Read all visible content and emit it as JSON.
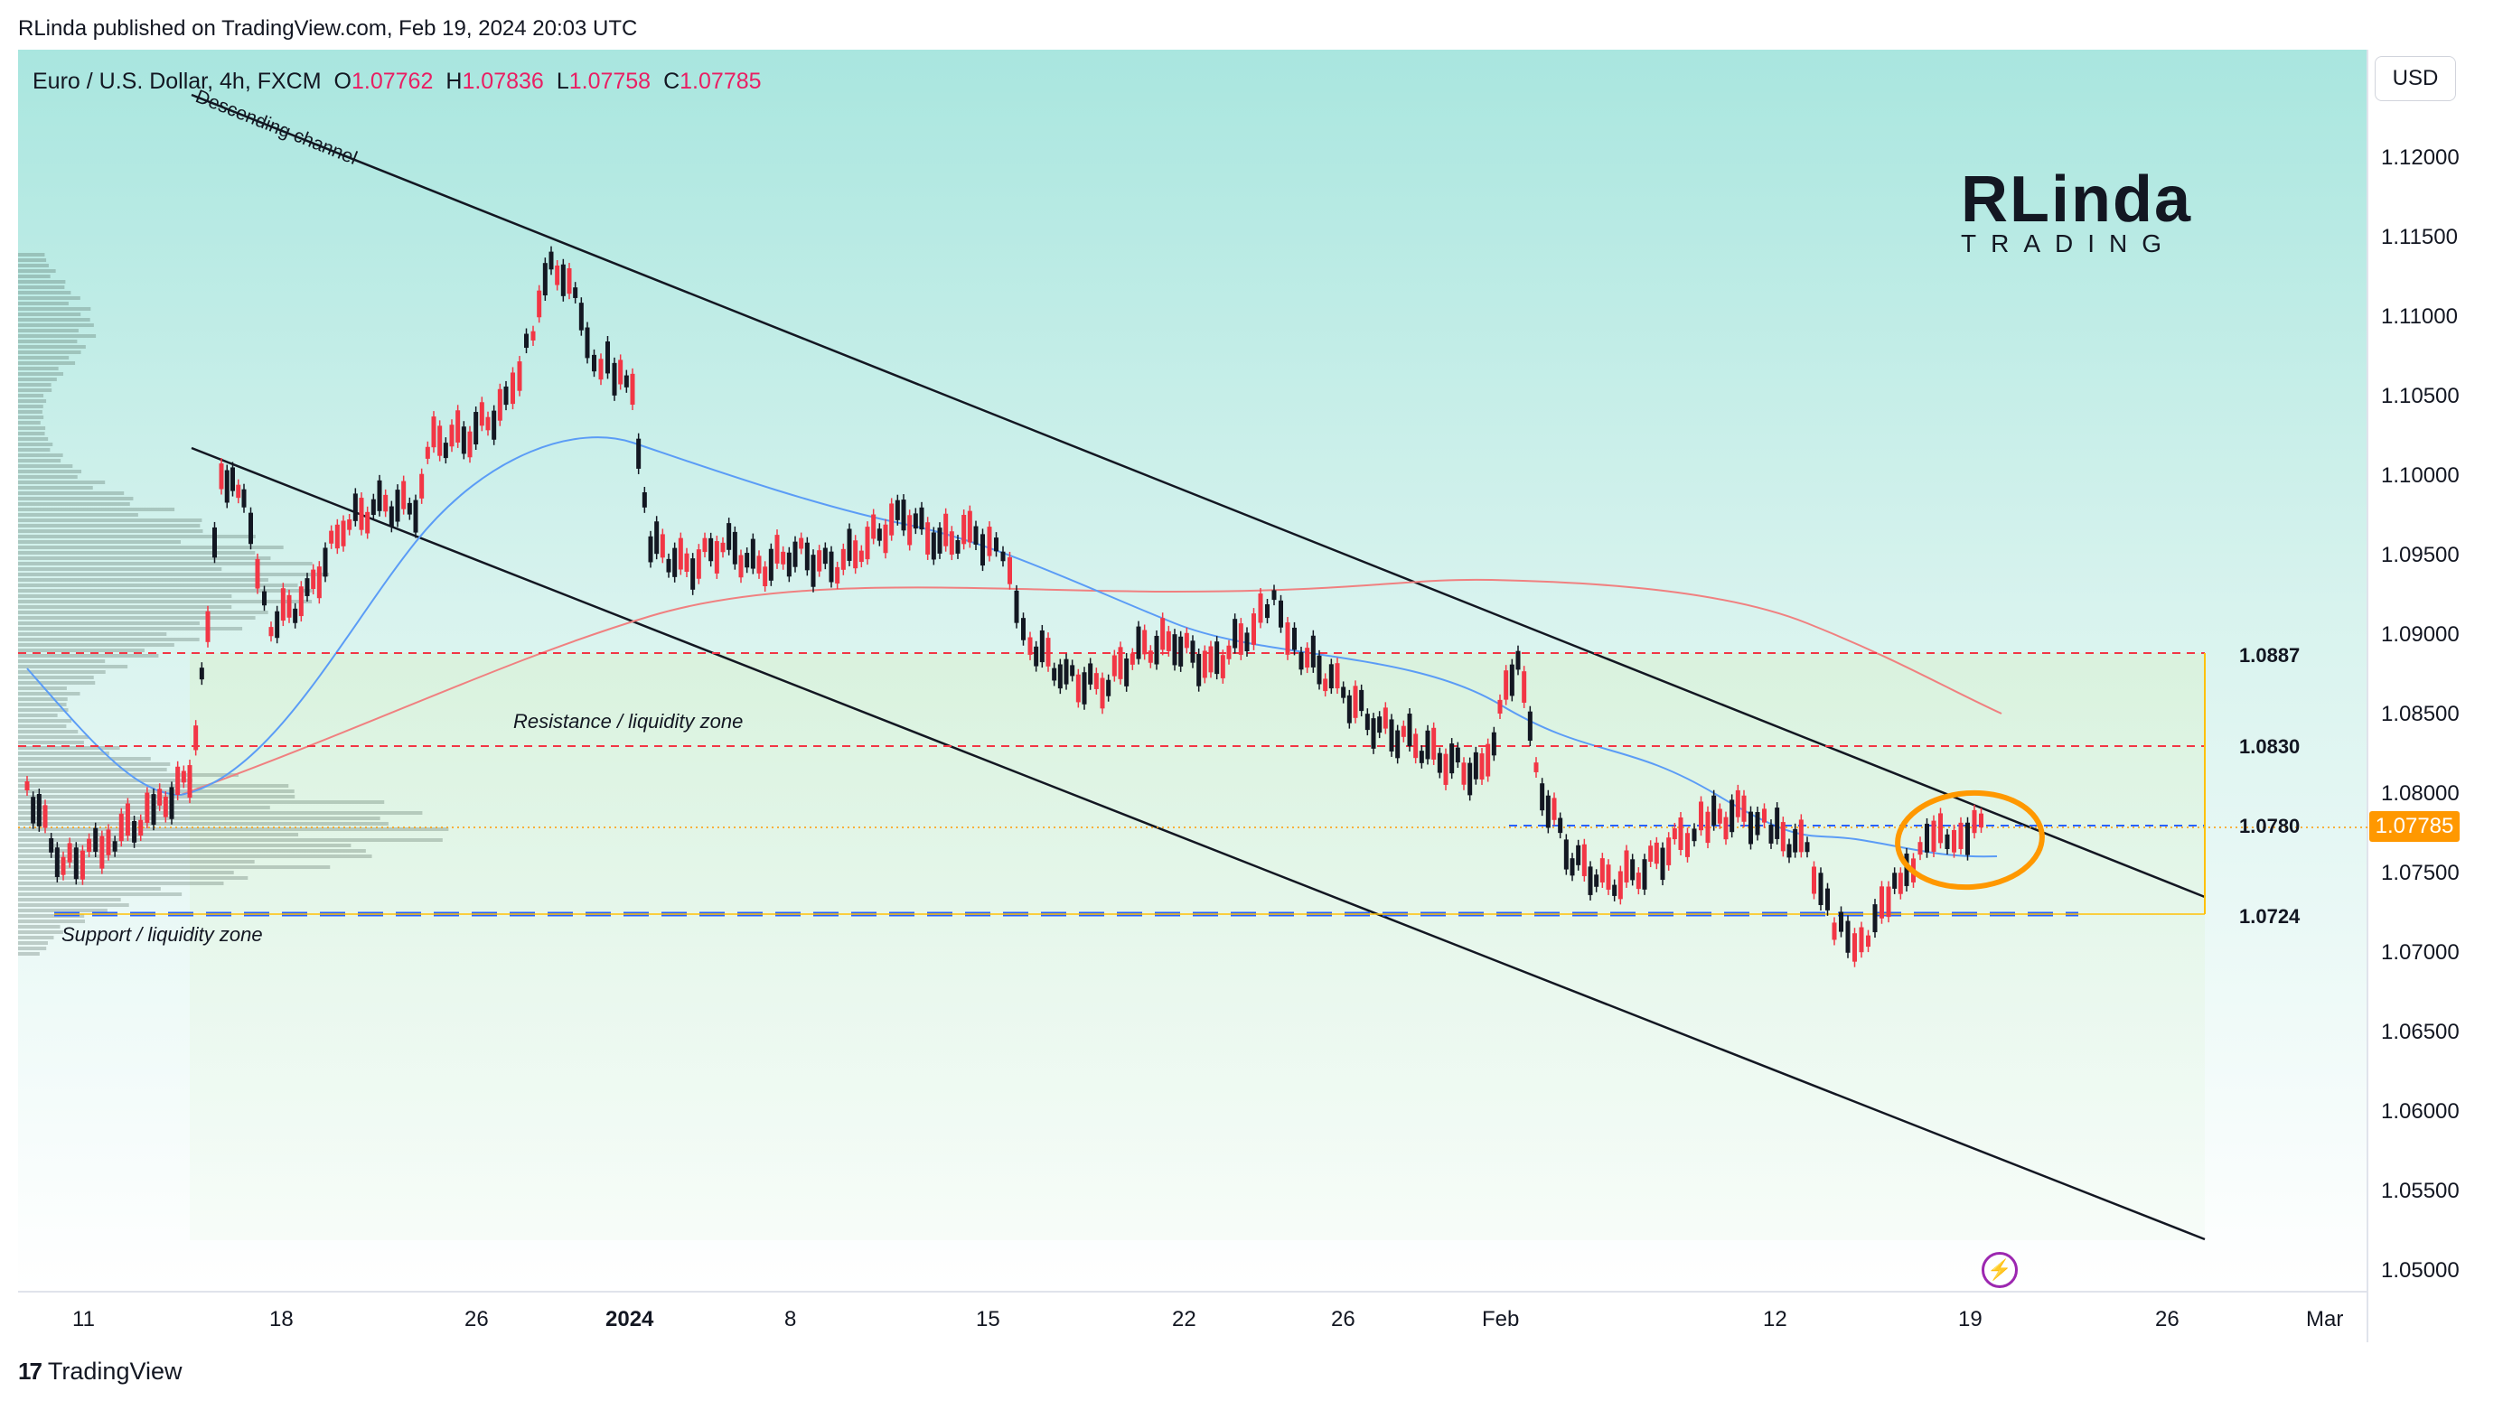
{
  "header": {
    "text": "RLinda published on TradingView.com, Feb 19, 2024 20:03 UTC"
  },
  "symbol": {
    "name": "Euro / U.S. Dollar, 4h, FXCM",
    "open_label": "O",
    "open": "1.07762",
    "high_label": "H",
    "high": "1.07836",
    "low_label": "L",
    "low": "1.07758",
    "close_label": "C",
    "close": "1.07785"
  },
  "currency_button": "USD",
  "brand": {
    "line1": "RLinda",
    "line2": "TRADING"
  },
  "price_axis": {
    "ticks": [
      "1.12000",
      "1.11500",
      "1.11000",
      "1.10500",
      "1.10000",
      "1.09500",
      "1.09000",
      "1.08500",
      "1.08000",
      "1.07500",
      "1.07000",
      "1.06500",
      "1.06000",
      "1.05500",
      "1.05000"
    ],
    "current_price": "1.07785"
  },
  "time_axis": {
    "ticks": [
      "11",
      "18",
      "26",
      "2024",
      "8",
      "15",
      "22",
      "26",
      "Feb",
      "12",
      "19",
      "26",
      "Mar"
    ]
  },
  "levels": [
    {
      "label": "1.0887",
      "color": "#f23645"
    },
    {
      "label": "1.0830",
      "color": "#f23645"
    },
    {
      "label": "1.0780",
      "color": "#2962ff"
    },
    {
      "label": "1.0724",
      "color": "#2962ff"
    }
  ],
  "annotations": {
    "channel": "Descending channel",
    "resistance": "Resistance / liquidity zone",
    "support": "Support / liquidity zone"
  },
  "footer": {
    "brand": "TradingView"
  },
  "colors": {
    "up": "#f23645",
    "down": "#131722",
    "accent": "#ff9800",
    "ma_fast": "#5b9cf6",
    "ma_slow": "#f08080"
  }
}
